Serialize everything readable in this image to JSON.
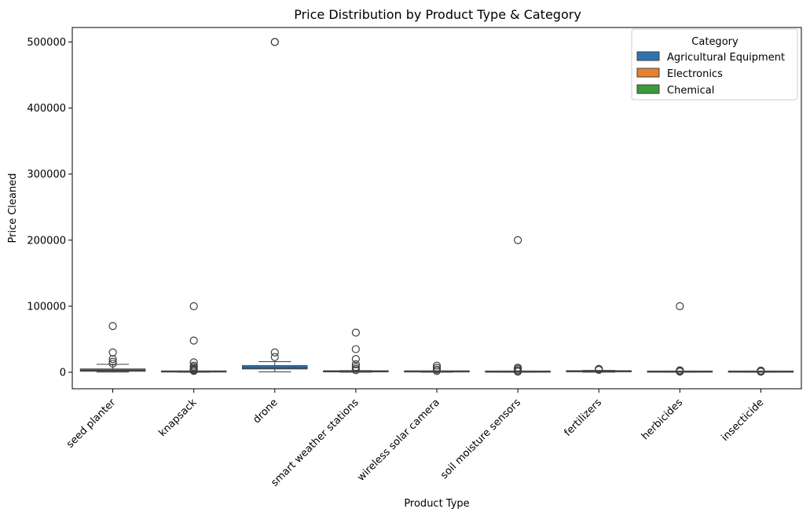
{
  "chart_data": {
    "type": "box",
    "title": "Price Distribution by Product Type & Category",
    "xlabel": "Product Type",
    "ylabel": "Price Cleaned",
    "ylim": [
      -25000,
      522000
    ],
    "y_ticks": [
      0,
      100000,
      200000,
      300000,
      400000,
      500000
    ],
    "y_tick_labels": [
      "0",
      "100000",
      "200000",
      "300000",
      "400000",
      "500000"
    ],
    "grid": false,
    "legend_title": "Category",
    "legend_position": "top-right",
    "legend": [
      {
        "name": "Agricultural Equipment",
        "color": "#2e75b0"
      },
      {
        "name": "Electronics",
        "color": "#e8802d"
      },
      {
        "name": "Chemical",
        "color": "#3b9a3c"
      }
    ],
    "categories": [
      "seed planter",
      "knapsack",
      "drone",
      "smart weather stations",
      "wireless solar camera",
      "soil moisture sensors",
      "fertilizers",
      "herbicides",
      "insecticide"
    ],
    "boxes": [
      {
        "category": "seed planter",
        "series": "Agricultural Equipment",
        "min": 300,
        "q1": 1500,
        "median": 3000,
        "q3": 5000,
        "max": 12000,
        "outliers": [
          70000,
          30000,
          20000,
          16000,
          13000
        ]
      },
      {
        "category": "knapsack",
        "series": "Agricultural Equipment",
        "min": 100,
        "q1": 300,
        "median": 500,
        "q3": 800,
        "max": 1500,
        "outliers": [
          100000,
          48000,
          15000,
          10000,
          8000,
          6000,
          4000,
          3000,
          2000
        ]
      },
      {
        "category": "drone",
        "series": "Agricultural Equipment",
        "min": 500,
        "q1": 5000,
        "median": 7000,
        "q3": 10000,
        "max": 16000,
        "outliers": [
          500000,
          500000,
          30000,
          23000
        ]
      },
      {
        "category": "smart weather stations",
        "series": "Agricultural Equipment",
        "min": 100,
        "q1": 500,
        "median": 1000,
        "q3": 1500,
        "max": 2500,
        "outliers": [
          60000,
          35000,
          20000,
          12000,
          8000,
          5000,
          3000
        ]
      },
      {
        "category": "wireless solar camera",
        "series": "Agricultural Equipment",
        "min": 100,
        "q1": 400,
        "median": 700,
        "q3": 1000,
        "max": 1800,
        "outliers": [
          10000,
          7000,
          4000,
          2000
        ]
      },
      {
        "category": "soil moisture sensors",
        "series": "Agricultural Equipment",
        "min": 50,
        "q1": 150,
        "median": 250,
        "q3": 400,
        "max": 700,
        "outliers": [
          200000,
          7000,
          5000,
          3000,
          1500,
          1000
        ]
      },
      {
        "category": "fertilizers",
        "series": "Agricultural Equipment",
        "min": 100,
        "q1": 600,
        "median": 1000,
        "q3": 1600,
        "max": 2800,
        "outliers": [
          5000,
          4000,
          3500
        ]
      },
      {
        "category": "herbicides",
        "series": "Agricultural Equipment",
        "min": 50,
        "q1": 150,
        "median": 250,
        "q3": 450,
        "max": 800,
        "outliers": [
          100000,
          3000,
          2000,
          1500,
          1000
        ]
      },
      {
        "category": "insecticide",
        "series": "Agricultural Equipment",
        "min": 50,
        "q1": 150,
        "median": 250,
        "q3": 400,
        "max": 700,
        "outliers": [
          2500,
          1800,
          1200,
          900
        ]
      }
    ]
  }
}
